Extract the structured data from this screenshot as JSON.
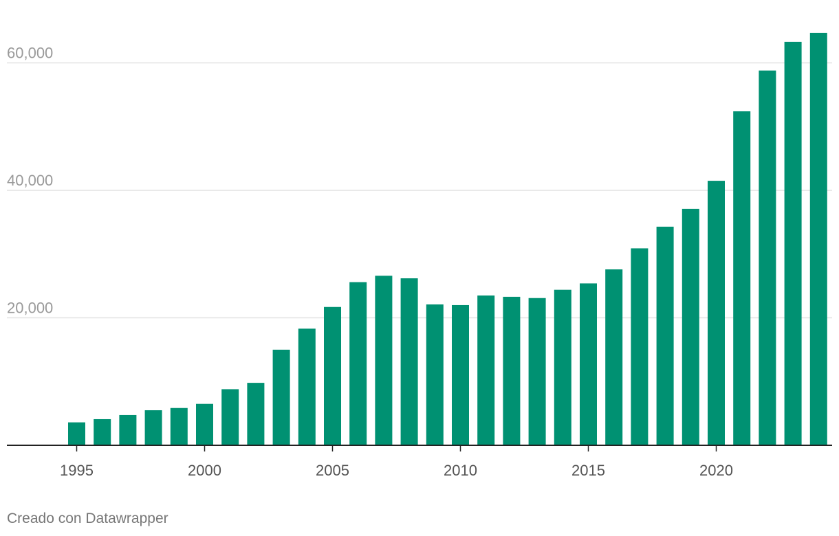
{
  "chart_data": {
    "type": "bar",
    "title": "",
    "xlabel": "",
    "ylabel": "",
    "x": [
      1995,
      1996,
      1997,
      1998,
      1999,
      2000,
      2001,
      2002,
      2003,
      2004,
      2005,
      2006,
      2007,
      2008,
      2009,
      2010,
      2011,
      2012,
      2013,
      2014,
      2015,
      2016,
      2017,
      2018,
      2019,
      2020,
      2021,
      2022,
      2023,
      2024
    ],
    "values": [
      3600,
      4100,
      4750,
      5500,
      5850,
      6500,
      8800,
      9800,
      15000,
      18300,
      21700,
      25600,
      26600,
      26200,
      22100,
      22000,
      23500,
      23300,
      23100,
      24400,
      25400,
      27600,
      30900,
      34300,
      37100,
      41500,
      52400,
      58800,
      63300,
      64700
    ],
    "ylim": [
      0,
      66000
    ],
    "y_ticks": [
      20000,
      40000,
      60000
    ],
    "y_tick_labels": [
      "20,000",
      "40,000",
      "60,000"
    ],
    "x_ticks": [
      1995,
      2000,
      2005,
      2010,
      2015,
      2020
    ],
    "x_tick_labels": [
      "1995",
      "2000",
      "2005",
      "2010",
      "2015",
      "2020"
    ],
    "grid": true,
    "colors": {
      "bar": "#009172",
      "grid": "#e2e2e2",
      "axis": "#222222"
    }
  },
  "footer": {
    "credit": "Creado con Datawrapper"
  }
}
